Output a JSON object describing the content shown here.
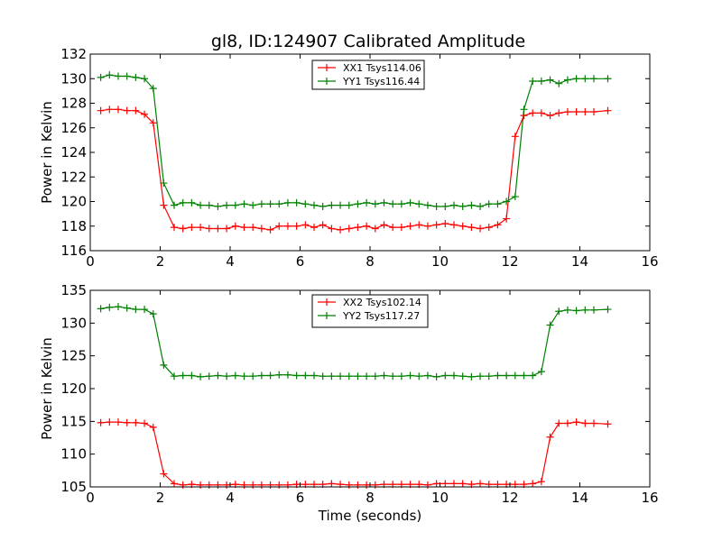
{
  "title": "gl8, ID:124907 Calibrated Amplitude",
  "chart_data": [
    {
      "type": "line",
      "title": "gl8, ID:124907 Calibrated Amplitude",
      "xlabel": "",
      "ylabel": "Power in Kelvin",
      "xlim": [
        0,
        16
      ],
      "ylim": [
        116,
        132
      ],
      "xticks": [
        0,
        2,
        4,
        6,
        8,
        10,
        12,
        14,
        16
      ],
      "yticks": [
        116,
        118,
        120,
        122,
        124,
        126,
        128,
        130,
        132
      ],
      "grid": false,
      "legend": "top-center",
      "marker": "+",
      "x": [
        0.3,
        0.55,
        0.8,
        1.05,
        1.3,
        1.55,
        1.8,
        2.1,
        2.4,
        2.65,
        2.9,
        3.15,
        3.4,
        3.65,
        3.9,
        4.15,
        4.4,
        4.65,
        4.9,
        5.15,
        5.4,
        5.65,
        5.9,
        6.15,
        6.4,
        6.65,
        6.9,
        7.15,
        7.4,
        7.65,
        7.9,
        8.15,
        8.4,
        8.65,
        8.9,
        9.15,
        9.4,
        9.65,
        9.9,
        10.15,
        10.4,
        10.65,
        10.9,
        11.15,
        11.4,
        11.65,
        11.9,
        12.15,
        12.4,
        12.65,
        12.9,
        13.15,
        13.4,
        13.65,
        13.9,
        14.15,
        14.4,
        14.8
      ],
      "series": [
        {
          "name": "XX1 Tsys114.06",
          "color": "#ff0000",
          "values": [
            127.4,
            127.5,
            127.5,
            127.4,
            127.4,
            127.1,
            126.4,
            119.7,
            117.9,
            117.8,
            117.9,
            117.9,
            117.8,
            117.8,
            117.8,
            118.0,
            117.9,
            117.9,
            117.8,
            117.7,
            118.0,
            118.0,
            118.0,
            118.1,
            117.9,
            118.1,
            117.8,
            117.7,
            117.8,
            117.9,
            118.0,
            117.8,
            118.1,
            117.9,
            117.9,
            118.0,
            118.1,
            118.0,
            118.1,
            118.2,
            118.1,
            118.0,
            117.9,
            117.8,
            117.9,
            118.1,
            118.6,
            125.3,
            127.0,
            127.2,
            127.2,
            127.0,
            127.2,
            127.3,
            127.3,
            127.3,
            127.3,
            127.4
          ]
        },
        {
          "name": "YY1 Tsys116.44",
          "color": "#008000",
          "values": [
            130.1,
            130.3,
            130.2,
            130.2,
            130.1,
            130.0,
            129.2,
            121.5,
            119.7,
            119.9,
            119.9,
            119.7,
            119.7,
            119.6,
            119.7,
            119.7,
            119.8,
            119.7,
            119.8,
            119.8,
            119.8,
            119.9,
            119.9,
            119.8,
            119.7,
            119.6,
            119.7,
            119.7,
            119.7,
            119.8,
            119.9,
            119.8,
            119.9,
            119.8,
            119.8,
            119.9,
            119.8,
            119.7,
            119.6,
            119.6,
            119.7,
            119.6,
            119.7,
            119.6,
            119.8,
            119.8,
            120.0,
            120.4,
            127.5,
            129.8,
            129.8,
            129.9,
            129.6,
            129.9,
            130.0,
            130.0,
            130.0,
            130.0
          ]
        }
      ]
    },
    {
      "type": "line",
      "title": "",
      "xlabel": "Time (seconds)",
      "ylabel": "Power in Kelvin",
      "xlim": [
        0,
        16
      ],
      "ylim": [
        105,
        135
      ],
      "xticks": [
        0,
        2,
        4,
        6,
        8,
        10,
        12,
        14,
        16
      ],
      "yticks": [
        105,
        110,
        115,
        120,
        125,
        130,
        135
      ],
      "grid": false,
      "legend": "top-center",
      "marker": "+",
      "x": [
        0.3,
        0.55,
        0.8,
        1.05,
        1.3,
        1.55,
        1.8,
        2.1,
        2.4,
        2.65,
        2.9,
        3.15,
        3.4,
        3.65,
        3.9,
        4.15,
        4.4,
        4.65,
        4.9,
        5.15,
        5.4,
        5.65,
        5.9,
        6.15,
        6.4,
        6.65,
        6.9,
        7.15,
        7.4,
        7.65,
        7.9,
        8.15,
        8.4,
        8.65,
        8.9,
        9.15,
        9.4,
        9.65,
        9.9,
        10.15,
        10.4,
        10.65,
        10.9,
        11.15,
        11.4,
        11.65,
        11.9,
        12.15,
        12.4,
        12.65,
        12.9,
        13.15,
        13.4,
        13.65,
        13.9,
        14.15,
        14.4,
        14.8
      ],
      "series": [
        {
          "name": "XX2 Tsys102.14",
          "color": "#ff0000",
          "values": [
            114.8,
            114.9,
            114.9,
            114.8,
            114.8,
            114.7,
            114.1,
            107.0,
            105.5,
            105.3,
            105.4,
            105.3,
            105.3,
            105.3,
            105.3,
            105.4,
            105.3,
            105.3,
            105.3,
            105.3,
            105.3,
            105.3,
            105.4,
            105.4,
            105.4,
            105.4,
            105.5,
            105.4,
            105.3,
            105.3,
            105.3,
            105.3,
            105.4,
            105.4,
            105.4,
            105.4,
            105.4,
            105.3,
            105.5,
            105.5,
            105.5,
            105.5,
            105.4,
            105.5,
            105.4,
            105.4,
            105.4,
            105.4,
            105.4,
            105.5,
            105.8,
            112.6,
            114.7,
            114.7,
            114.9,
            114.7,
            114.7,
            114.6
          ]
        },
        {
          "name": "YY2 Tsys117.27",
          "color": "#008000",
          "values": [
            132.2,
            132.4,
            132.5,
            132.3,
            132.1,
            132.1,
            131.4,
            123.6,
            121.9,
            122.0,
            122.0,
            121.8,
            121.9,
            122.0,
            121.9,
            122.0,
            121.9,
            121.9,
            122.0,
            122.0,
            122.1,
            122.1,
            122.0,
            122.0,
            122.0,
            121.9,
            121.9,
            121.9,
            121.9,
            121.9,
            121.9,
            121.9,
            122.0,
            121.9,
            121.9,
            122.0,
            121.9,
            122.0,
            121.8,
            122.0,
            122.0,
            121.9,
            121.8,
            121.9,
            121.9,
            122.0,
            122.0,
            122.0,
            122.0,
            122.0,
            122.6,
            129.7,
            131.8,
            132.0,
            131.9,
            132.0,
            132.0,
            132.1
          ]
        }
      ]
    }
  ]
}
